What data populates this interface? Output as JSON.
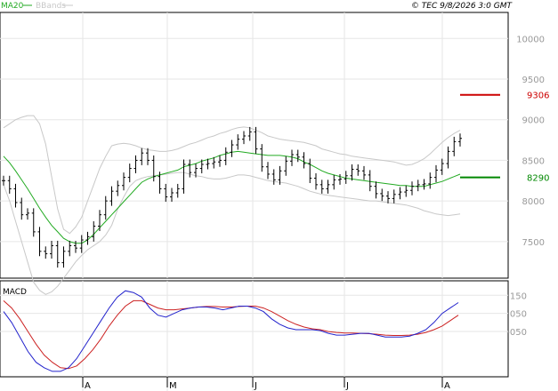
{
  "header": {
    "legend_ma": "MA20",
    "legend_bbands": "BBands",
    "copyright": "© TEC 9/8/2026 3:0 GMT"
  },
  "macd_panel": {
    "label": "MACD"
  },
  "colors": {
    "price": "#000000",
    "ma": "#22aa22",
    "bbands": "#c8c8c8",
    "macd_line": "#2222cc",
    "signal_line": "#cc2222",
    "resistance": "#cc0000",
    "support": "#008800",
    "grid": "#e6e6e6",
    "axis_text": "#999999"
  },
  "chart_data": [
    {
      "type": "line",
      "title": "",
      "x_ticks": [
        "A",
        "M",
        "J",
        "J",
        "A"
      ],
      "y_ticks": [
        "10000",
        "9500",
        "9000",
        "8500",
        "8000",
        "7500"
      ],
      "ylim": [
        7050,
        10320
      ],
      "grid": true,
      "legend": "top-left",
      "levels": [
        {
          "name": "resistance",
          "value": 9306,
          "label": "9306"
        },
        {
          "name": "support",
          "value": 8290,
          "label": "8290"
        }
      ],
      "series": [
        {
          "name": "price",
          "values": [
            8250,
            8150,
            7980,
            7830,
            7850,
            7620,
            7380,
            7350,
            7450,
            7240,
            7380,
            7450,
            7420,
            7520,
            7560,
            7690,
            7830,
            8000,
            8120,
            8190,
            8290,
            8400,
            8500,
            8590,
            8500,
            8300,
            8150,
            8050,
            8100,
            8150,
            8450,
            8350,
            8400,
            8450,
            8460,
            8480,
            8500,
            8600,
            8690,
            8760,
            8800,
            8850,
            8640,
            8420,
            8330,
            8260,
            8370,
            8490,
            8570,
            8540,
            8460,
            8280,
            8200,
            8150,
            8200,
            8260,
            8270,
            8310,
            8390,
            8370,
            8320,
            8180,
            8090,
            8060,
            8030,
            8080,
            8110,
            8130,
            8180,
            8200,
            8210,
            8290,
            8380,
            8460,
            8610,
            8730,
            8770
          ]
        },
        {
          "name": "MA20",
          "values": [
            8550,
            8470,
            8370,
            8260,
            8150,
            8030,
            7910,
            7800,
            7700,
            7620,
            7540,
            7500,
            7480,
            7480,
            7520,
            7590,
            7670,
            7750,
            7830,
            7910,
            7990,
            8070,
            8150,
            8230,
            8270,
            8300,
            8320,
            8340,
            8360,
            8380,
            8420,
            8440,
            8460,
            8490,
            8510,
            8530,
            8560,
            8580,
            8600,
            8610,
            8600,
            8590,
            8580,
            8570,
            8560,
            8560,
            8560,
            8550,
            8540,
            8520,
            8480,
            8450,
            8410,
            8370,
            8340,
            8320,
            8300,
            8280,
            8270,
            8260,
            8250,
            8240,
            8230,
            8220,
            8210,
            8200,
            8190,
            8190,
            8180,
            8180,
            8180,
            8200,
            8220,
            8240,
            8270,
            8300,
            8330
          ]
        },
        {
          "name": "BBands upper",
          "values": [
            8900,
            8950,
            9000,
            9030,
            9050,
            9050,
            8950,
            8700,
            8300,
            7900,
            7650,
            7600,
            7680,
            7800,
            8000,
            8200,
            8400,
            8550,
            8680,
            8700,
            8710,
            8700,
            8680,
            8650,
            8630,
            8620,
            8610,
            8610,
            8620,
            8640,
            8670,
            8700,
            8720,
            8750,
            8780,
            8800,
            8830,
            8850,
            8880,
            8900,
            8910,
            8900,
            8870,
            8840,
            8800,
            8780,
            8760,
            8750,
            8740,
            8730,
            8720,
            8700,
            8680,
            8640,
            8620,
            8600,
            8580,
            8570,
            8550,
            8540,
            8530,
            8520,
            8510,
            8500,
            8490,
            8480,
            8460,
            8440,
            8450,
            8480,
            8520,
            8580,
            8650,
            8720,
            8780,
            8830,
            8870
          ]
        },
        {
          "name": "BBands lower",
          "values": [
            8200,
            8000,
            7750,
            7500,
            7250,
            7000,
            6900,
            6850,
            6880,
            6950,
            7050,
            7150,
            7250,
            7330,
            7400,
            7450,
            7500,
            7580,
            7700,
            7900,
            8050,
            8180,
            8250,
            8280,
            8300,
            8310,
            8320,
            8330,
            8340,
            8350,
            8350,
            8330,
            8310,
            8300,
            8280,
            8270,
            8270,
            8280,
            8300,
            8320,
            8320,
            8310,
            8290,
            8270,
            8250,
            8240,
            8230,
            8220,
            8200,
            8180,
            8150,
            8120,
            8100,
            8080,
            8070,
            8060,
            8050,
            8040,
            8030,
            8020,
            8010,
            8000,
            8000,
            7990,
            7980,
            7970,
            7960,
            7950,
            7930,
            7910,
            7880,
            7860,
            7840,
            7830,
            7820,
            7830,
            7840
          ]
        }
      ]
    },
    {
      "type": "line",
      "title": "MACD",
      "y_ticks": [
        "150",
        "050",
        "-050"
      ],
      "ylim": [
        -300,
        230
      ],
      "x_ticks": [
        "A",
        "M",
        "J",
        "J",
        "A"
      ],
      "series": [
        {
          "name": "MACD",
          "values": [
            60,
            0,
            -80,
            -160,
            -220,
            -250,
            -270,
            -270,
            -250,
            -200,
            -130,
            -60,
            10,
            80,
            140,
            175,
            165,
            140,
            80,
            40,
            30,
            50,
            70,
            80,
            85,
            85,
            80,
            70,
            80,
            90,
            90,
            80,
            60,
            20,
            -10,
            -30,
            -40,
            -40,
            -40,
            -45,
            -60,
            -70,
            -70,
            -65,
            -60,
            -60,
            -70,
            -80,
            -80,
            -80,
            -75,
            -60,
            -40,
            0,
            50,
            80,
            110
          ]
        },
        {
          "name": "signal",
          "values": [
            120,
            80,
            20,
            -50,
            -120,
            -180,
            -220,
            -250,
            -255,
            -240,
            -200,
            -150,
            -90,
            -20,
            40,
            90,
            120,
            120,
            100,
            80,
            70,
            70,
            75,
            80,
            85,
            88,
            88,
            85,
            85,
            88,
            90,
            90,
            80,
            60,
            35,
            10,
            -10,
            -25,
            -35,
            -40,
            -50,
            -55,
            -58,
            -58,
            -60,
            -62,
            -65,
            -70,
            -72,
            -72,
            -70,
            -65,
            -55,
            -40,
            -20,
            10,
            40
          ]
        }
      ]
    }
  ]
}
